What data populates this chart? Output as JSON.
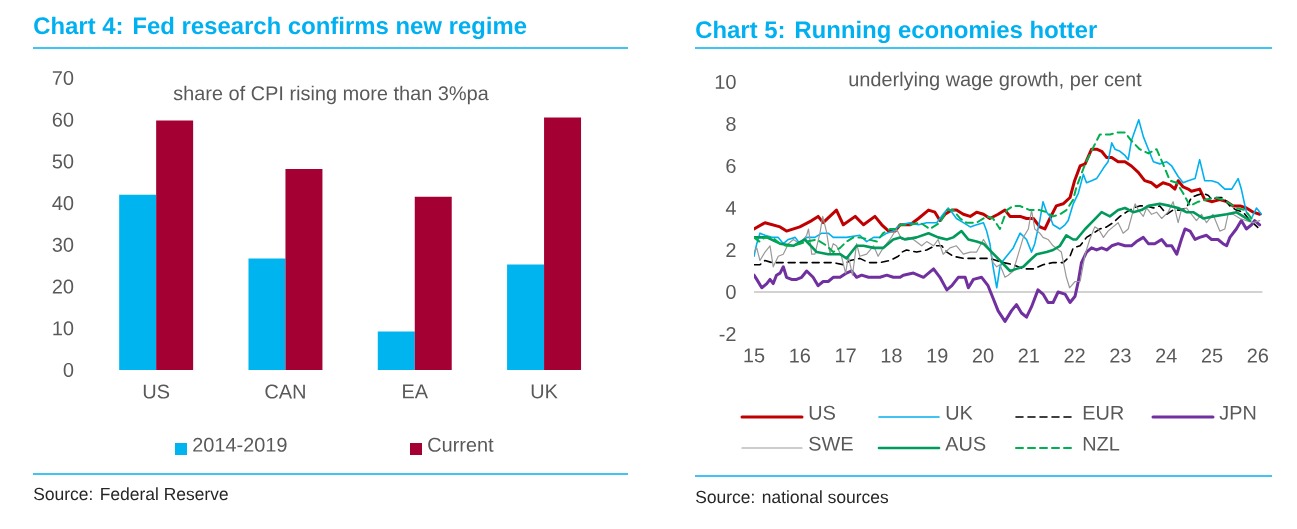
{
  "chart_data": [
    {
      "type": "bar",
      "title": "Chart 4: Fed research confirms new regime",
      "subtitle": "share of CPI rising more than 3%pa",
      "categories": [
        "US",
        "CAN",
        "EA",
        "UK"
      ],
      "series": [
        {
          "name": "2014-2019",
          "color": "#00b4f0",
          "values": [
            42,
            26.7,
            9.2,
            25.3
          ]
        },
        {
          "name": "Current",
          "color": "#a50034",
          "values": [
            59.8,
            48.2,
            41.5,
            60.5
          ]
        }
      ],
      "ylim": [
        0,
        70
      ],
      "yticks": [
        0,
        10,
        20,
        30,
        40,
        50,
        60,
        70
      ],
      "legend": "bottom",
      "annotations": [
        "Source: Federal Reserve"
      ]
    },
    {
      "type": "line",
      "title": "Chart 5: Running economies hotter",
      "subtitle": "underlying wage growth, per cent",
      "xlim": [
        15,
        26.1
      ],
      "xticks": [
        15,
        16,
        17,
        18,
        19,
        20,
        21,
        22,
        23,
        24,
        25,
        26
      ],
      "ylim": [
        -2,
        10
      ],
      "yticks": [
        -2,
        0,
        2,
        4,
        6,
        8,
        10
      ],
      "legend": "bottom",
      "series": [
        {
          "name": "US",
          "color": "#c00000",
          "x": [
            15.0,
            15.24,
            15.57,
            15.71,
            16.0,
            16.26,
            16.4,
            16.51,
            16.8,
            16.95,
            17.21,
            17.39,
            17.64,
            17.79,
            17.94,
            18.08,
            18.19,
            18.41,
            18.59,
            18.81,
            18.95,
            19.06,
            19.17,
            19.32,
            19.42,
            19.57,
            19.72,
            19.86,
            20.01,
            20.15,
            20.33,
            20.48,
            20.59,
            20.81,
            20.95,
            21.1,
            21.24,
            21.35,
            21.46,
            21.6,
            21.75,
            21.9,
            22.0,
            22.12,
            22.23,
            22.37,
            22.48,
            22.59,
            22.7,
            22.81,
            22.95,
            23.1,
            23.24,
            23.39,
            23.53,
            23.68,
            23.79,
            23.93,
            24.08,
            24.19,
            24.26,
            24.37,
            24.48,
            24.55,
            24.73,
            24.84,
            24.99,
            25.17,
            25.32,
            25.46,
            25.61,
            25.75,
            25.9,
            26.04
          ],
          "values": [
            3.0,
            3.3,
            3.1,
            2.9,
            3.1,
            3.4,
            3.6,
            3.3,
            3.9,
            3.2,
            3.6,
            3.2,
            3.6,
            3.2,
            2.9,
            2.9,
            3.2,
            3.2,
            3.5,
            3.9,
            3.8,
            3.4,
            3.7,
            3.9,
            3.9,
            3.7,
            3.6,
            3.8,
            3.7,
            3.5,
            3.7,
            3.9,
            3.6,
            3.6,
            3.5,
            3.5,
            3.1,
            3.0,
            3.5,
            4.1,
            4.2,
            4.5,
            5.3,
            6.0,
            6.1,
            6.8,
            6.8,
            6.7,
            6.4,
            6.4,
            6.2,
            6.2,
            6.0,
            5.7,
            5.3,
            5.2,
            5.0,
            5.2,
            5.1,
            4.9,
            5.3,
            5.0,
            4.9,
            4.8,
            4.9,
            4.4,
            4.3,
            4.4,
            4.3,
            4.1,
            4.1,
            4.0,
            3.8,
            3.7
          ]
        },
        {
          "name": "UK",
          "color": "#00b0f0",
          "x": [
            15.0,
            15.06,
            15.13,
            15.24,
            15.39,
            15.53,
            15.64,
            15.75,
            15.9,
            16.0,
            16.15,
            16.33,
            16.48,
            16.62,
            16.73,
            17.02,
            17.31,
            17.46,
            17.61,
            17.75,
            17.9,
            18.04,
            18.19,
            18.41,
            18.59,
            18.77,
            18.99,
            19.13,
            19.24,
            19.32,
            19.42,
            19.57,
            19.72,
            19.86,
            20.01,
            20.08,
            20.15,
            20.22,
            20.3,
            20.37,
            20.44,
            20.55,
            20.66,
            20.81,
            20.95,
            21.06,
            21.13,
            21.24,
            21.31,
            21.39,
            21.46,
            21.53,
            21.68,
            21.79,
            21.86,
            21.97,
            22.08,
            22.19,
            22.26,
            22.37,
            22.48,
            22.63,
            22.73,
            22.81,
            22.88,
            22.99,
            23.1,
            23.17,
            23.24,
            23.32,
            23.4,
            23.5,
            23.61,
            23.72,
            23.86,
            24.01,
            24.12,
            24.26,
            24.37,
            24.48,
            24.63,
            24.73,
            24.84,
            24.99,
            25.13,
            25.28,
            25.43,
            25.57,
            25.64,
            25.75,
            25.86,
            25.97,
            26.08
          ],
          "values": [
            1.7,
            2.3,
            2.8,
            2.7,
            2.6,
            2.6,
            2.3,
            2.5,
            2.6,
            2.3,
            2.6,
            2.6,
            2.8,
            2.8,
            2.6,
            2.6,
            2.7,
            2.4,
            2.6,
            2.6,
            2.8,
            2.9,
            3.2,
            3.3,
            3.2,
            3.3,
            3.3,
            3.7,
            4.0,
            3.8,
            3.5,
            3.3,
            3.1,
            3.2,
            3.3,
            2.9,
            2.3,
            1.2,
            0.2,
            1.2,
            1.5,
            1.8,
            2.1,
            2.8,
            2.5,
            1.9,
            2.3,
            3.4,
            4.3,
            3.8,
            3.6,
            3.2,
            3.0,
            3.2,
            3.4,
            4.2,
            4.7,
            5.6,
            5.2,
            5.3,
            5.4,
            5.9,
            6.2,
            7.1,
            6.8,
            6.7,
            6.5,
            6.3,
            7.2,
            7.7,
            8.2,
            7.4,
            6.8,
            6.2,
            6.1,
            6.2,
            6.0,
            5.5,
            5.2,
            5.3,
            5.4,
            6.3,
            5.3,
            5.3,
            5.2,
            4.9,
            4.9,
            5.4,
            4.9,
            3.8,
            3.5,
            4.0,
            3.7
          ]
        },
        {
          "name": "EUR",
          "color": "#000000",
          "line_style": "dashed",
          "x": [
            15.0,
            15.13,
            15.24,
            15.39,
            15.57,
            15.79,
            16.0,
            16.22,
            16.44,
            16.73,
            16.95,
            17.1,
            17.31,
            17.5,
            17.75,
            17.97,
            18.15,
            18.23,
            18.33,
            18.55,
            18.77,
            18.95,
            19.1,
            19.21,
            19.35,
            19.57,
            19.86,
            20.15,
            20.44,
            20.66,
            20.88,
            21.1,
            21.31,
            21.53,
            21.75,
            21.9,
            21.97,
            22.12,
            22.26,
            22.41,
            22.55,
            22.7,
            22.84,
            22.99,
            23.13,
            23.28,
            23.42,
            23.57,
            23.72,
            23.86,
            24.01,
            24.15,
            24.3,
            24.44,
            24.55,
            24.66,
            24.81,
            24.92,
            24.99,
            25.1,
            25.24,
            25.39,
            25.53,
            25.68,
            25.83,
            25.94,
            26.04
          ],
          "values": [
            1.3,
            1.3,
            1.5,
            1.4,
            1.4,
            1.4,
            1.4,
            1.4,
            1.4,
            1.4,
            1.3,
            1.5,
            1.6,
            1.4,
            1.4,
            1.5,
            1.7,
            1.9,
            2.0,
            1.9,
            2.0,
            2.2,
            2.2,
            1.9,
            1.7,
            1.6,
            1.6,
            1.6,
            1.4,
            1.3,
            1.1,
            1.1,
            1.3,
            1.4,
            1.4,
            1.7,
            2.1,
            2.2,
            2.6,
            2.8,
            3.0,
            3.1,
            3.3,
            3.6,
            3.8,
            4.0,
            4.1,
            4.1,
            4.0,
            4.1,
            3.7,
            3.9,
            3.9,
            4.0,
            4.5,
            4.6,
            4.7,
            4.6,
            4.4,
            4.5,
            4.5,
            4.1,
            3.9,
            3.8,
            3.4,
            3.2,
            3.0
          ]
        },
        {
          "name": "JPN",
          "color": "#7030a0",
          "x": [
            15.0,
            15.06,
            15.17,
            15.28,
            15.35,
            15.42,
            15.49,
            15.57,
            15.64,
            15.71,
            15.82,
            15.93,
            16.04,
            16.15,
            16.29,
            16.4,
            16.51,
            16.62,
            16.73,
            16.88,
            17.02,
            17.13,
            17.24,
            17.35,
            17.5,
            17.61,
            17.75,
            17.9,
            18.04,
            18.19,
            18.26,
            18.48,
            18.7,
            18.92,
            19.06,
            19.21,
            19.32,
            19.46,
            19.61,
            19.68,
            19.79,
            19.97,
            20.11,
            20.22,
            20.33,
            20.48,
            20.62,
            20.73,
            20.84,
            20.95,
            21.06,
            21.2,
            21.31,
            21.42,
            21.53,
            21.64,
            21.79,
            21.9,
            22.01,
            22.08,
            22.15,
            22.26,
            22.37,
            22.48,
            22.59,
            22.7,
            22.81,
            22.95,
            23.1,
            23.24,
            23.35,
            23.5,
            23.61,
            23.75,
            23.9,
            24.01,
            24.12,
            24.23,
            24.33,
            24.41,
            24.52,
            24.63,
            24.73,
            24.88,
            24.99,
            25.13,
            25.24,
            25.32,
            25.39,
            25.53,
            25.64,
            25.75,
            25.86,
            25.93,
            26.04
          ],
          "values": [
            0.8,
            0.6,
            0.2,
            0.4,
            0.6,
            0.4,
            0.8,
            0.9,
            1.2,
            0.7,
            0.6,
            0.6,
            0.7,
            1.0,
            0.7,
            0.3,
            0.5,
            0.5,
            0.7,
            0.7,
            0.9,
            1.0,
            0.7,
            0.8,
            0.7,
            0.7,
            0.7,
            0.8,
            0.7,
            0.7,
            0.8,
            0.9,
            0.7,
            1.1,
            0.7,
            0.1,
            0.3,
            0.7,
            0.7,
            0.2,
            0.6,
            0.7,
            0.3,
            -0.3,
            -0.9,
            -1.4,
            -0.9,
            -0.6,
            -1.0,
            -1.2,
            -0.7,
            0.1,
            -0.1,
            -0.5,
            -0.5,
            0.0,
            -0.1,
            -0.5,
            -0.2,
            0.5,
            1.4,
            1.9,
            2.1,
            2.0,
            2.1,
            2.0,
            2.2,
            2.3,
            2.2,
            2.2,
            2.4,
            2.6,
            2.3,
            2.3,
            2.5,
            2.2,
            2.2,
            1.8,
            2.5,
            3.0,
            2.9,
            2.5,
            2.6,
            2.7,
            2.5,
            2.5,
            2.3,
            2.2,
            2.6,
            3.0,
            3.4,
            3.0,
            3.2,
            3.4,
            3.2
          ]
        },
        {
          "name": "SWE",
          "color": "#999999",
          "x": [
            15.0,
            15.06,
            15.13,
            15.24,
            15.35,
            15.42,
            15.53,
            15.64,
            15.75,
            15.86,
            16.0,
            16.15,
            16.19,
            16.26,
            16.33,
            16.44,
            16.5,
            16.58,
            16.66,
            16.73,
            16.8,
            16.91,
            17.0,
            17.06,
            17.15,
            17.24,
            17.31,
            17.46,
            17.61,
            17.71,
            17.82,
            17.97,
            18.11,
            18.23,
            18.37,
            18.48,
            18.66,
            18.77,
            18.92,
            19.02,
            19.13,
            19.28,
            19.42,
            19.57,
            19.72,
            19.86,
            20.01,
            20.15,
            20.22,
            20.3,
            20.37,
            20.48,
            20.55,
            20.66,
            20.77,
            20.88,
            20.99,
            21.06,
            21.13,
            21.24,
            21.31,
            21.42,
            21.53,
            21.71,
            21.82,
            21.89,
            22.01,
            22.12,
            22.23,
            22.33,
            22.44,
            22.52,
            22.63,
            22.73,
            22.84,
            22.95,
            23.06,
            23.17,
            23.32,
            23.39,
            23.5,
            23.57,
            23.68,
            23.79,
            23.9,
            24.04,
            24.15,
            24.26,
            24.33,
            24.44,
            24.55,
            24.66,
            24.77,
            24.88,
            25.02,
            25.17,
            25.28,
            25.35,
            25.46,
            25.61,
            25.75,
            25.9,
            26.04
          ],
          "values": [
            1.9,
            2.1,
            1.5,
            1.9,
            2.2,
            1.2,
            1.7,
            1.8,
            2.3,
            2.5,
            2.3,
            2.7,
            3.0,
            1.8,
            1.8,
            2.8,
            3.6,
            2.9,
            1.8,
            2.3,
            2.2,
            1.7,
            0.9,
            1.7,
            0.8,
            2.3,
            1.7,
            1.8,
            2.2,
            1.7,
            2.1,
            2.5,
            3.0,
            2.5,
            2.6,
            2.5,
            2.2,
            2.4,
            2.2,
            2.5,
            1.8,
            2.1,
            2.2,
            1.8,
            1.9,
            1.9,
            2.5,
            2.0,
            1.4,
            1.2,
            1.3,
            0.7,
            0.8,
            1.0,
            1.8,
            2.6,
            3.0,
            3.9,
            3.0,
            2.8,
            2.6,
            2.5,
            2.2,
            1.9,
            0.7,
            0.2,
            0.5,
            0.5,
            1.8,
            2.5,
            3.1,
            3.0,
            2.6,
            2.9,
            3.1,
            3.3,
            2.8,
            3.0,
            4.2,
            3.9,
            3.6,
            4.0,
            3.7,
            3.8,
            3.5,
            3.8,
            4.3,
            3.3,
            3.9,
            4.0,
            3.7,
            3.4,
            3.7,
            3.3,
            3.7,
            2.9,
            3.0,
            3.7,
            3.7,
            3.5,
            3.4,
            3.3,
            3.4
          ]
        },
        {
          "name": "AUS",
          "color": "#009a5a",
          "x": [
            15.0,
            15.28,
            15.57,
            15.86,
            16.11,
            16.37,
            16.62,
            16.88,
            17.02,
            17.24,
            17.39,
            17.61,
            17.82,
            18.04,
            18.19,
            18.3,
            18.55,
            18.81,
            19.02,
            19.21,
            19.35,
            19.53,
            19.68,
            19.86,
            20.01,
            20.19,
            20.37,
            20.59,
            20.73,
            20.88,
            21.02,
            21.17,
            21.39,
            21.53,
            21.68,
            21.82,
            21.97,
            22.04,
            22.23,
            22.41,
            22.59,
            22.77,
            22.95,
            23.1,
            23.28,
            23.46,
            23.61,
            23.86,
            24.08,
            24.26,
            24.44,
            24.59,
            24.81,
            25.03,
            25.32,
            25.53,
            25.68,
            25.83
          ],
          "values": [
            2.6,
            2.6,
            2.3,
            2.2,
            2.5,
            1.9,
            1.8,
            1.8,
            1.6,
            2.2,
            2.2,
            2.1,
            2.1,
            2.5,
            2.6,
            2.5,
            2.6,
            2.8,
            2.6,
            2.5,
            2.6,
            2.9,
            2.5,
            2.4,
            2.3,
            1.9,
            1.5,
            1.0,
            1.1,
            1.2,
            1.5,
            1.8,
            1.9,
            2.0,
            2.2,
            2.7,
            2.5,
            2.5,
            3.0,
            3.4,
            3.8,
            3.6,
            3.9,
            4.0,
            3.8,
            3.9,
            4.1,
            4.2,
            4.1,
            4.0,
            3.8,
            3.8,
            3.5,
            3.6,
            3.7,
            3.8,
            3.6,
            3.4
          ]
        },
        {
          "name": "NZL",
          "color": "#00b050",
          "line_style": "dashed",
          "x": [
            15.0,
            15.11,
            15.24,
            15.4,
            15.57,
            15.71,
            15.86,
            16.0,
            16.15,
            16.37,
            16.59,
            16.73,
            16.88,
            17.02,
            17.17,
            17.31,
            17.5,
            17.68,
            17.82,
            17.97,
            18.12,
            18.19,
            18.41,
            18.63,
            18.84,
            19.06,
            19.21,
            19.35,
            19.5,
            19.64,
            19.86,
            20.08,
            20.22,
            20.37,
            20.52,
            20.66,
            20.8,
            21.02,
            21.24,
            21.39,
            21.53,
            21.68,
            21.82,
            21.97,
            22.04,
            22.23,
            22.41,
            22.55,
            22.77,
            22.95,
            23.1,
            23.24,
            23.42,
            23.61,
            23.79,
            23.93,
            24.08,
            24.23,
            24.37,
            24.52,
            24.7,
            24.88,
            25.06,
            25.24,
            25.39,
            25.53,
            25.72,
            25.86
          ],
          "values": [
            2.6,
            2.4,
            2.6,
            2.6,
            2.3,
            2.2,
            2.2,
            2.3,
            2.4,
            2.5,
            2.2,
            1.9,
            2.1,
            2.4,
            2.6,
            2.6,
            2.5,
            2.4,
            2.8,
            3.0,
            3.0,
            3.2,
            3.2,
            3.3,
            3.0,
            3.3,
            3.9,
            3.9,
            3.5,
            3.3,
            3.3,
            3.6,
            3.5,
            3.0,
            3.9,
            4.1,
            4.1,
            3.9,
            3.9,
            3.8,
            3.6,
            3.7,
            3.9,
            4.4,
            5.0,
            6.1,
            6.9,
            7.5,
            7.5,
            7.6,
            7.6,
            7.2,
            6.8,
            6.6,
            6.8,
            6.1,
            5.3,
            5.2,
            4.7,
            4.1,
            4.3,
            4.4,
            4.5,
            4.4,
            4.2,
            4.0,
            3.9,
            3.5
          ]
        }
      ],
      "annotations": [
        "Source: national sources"
      ]
    }
  ]
}
